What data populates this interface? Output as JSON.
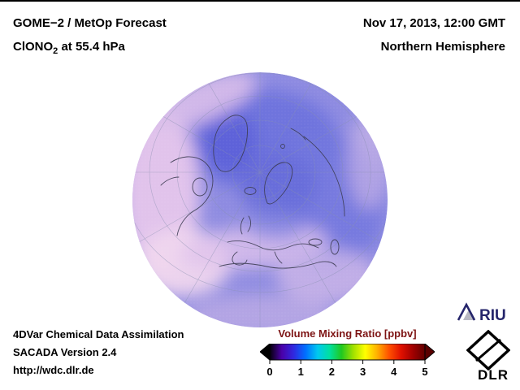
{
  "header": {
    "product": "GOME−2 / MetOp Forecast",
    "species_prefix": "ClONO",
    "species_sub": "2",
    "species_suffix": " at 55.4 hPa",
    "datetime": "Nov 17, 2013, 12:00 GMT",
    "region": "Northern Hemisphere"
  },
  "footer": {
    "assimilation": "4DVar Chemical Data Assimilation",
    "version": "SACADA Version 2.4",
    "url": "http://wdc.dlr.de"
  },
  "colorbar": {
    "title": "Volume Mixing Ratio [ppbv]",
    "title_color": "#7d1414",
    "range_min": 0,
    "range_max": 5,
    "unit": "ppbv",
    "ticks": [
      "0",
      "1",
      "2",
      "3",
      "4",
      "5"
    ],
    "colors": [
      "#05000a",
      "#4a00a8",
      "#3028e0",
      "#0070ff",
      "#00c8f0",
      "#00e0a0",
      "#20c820",
      "#a0e000",
      "#ffff00",
      "#ffb000",
      "#ff5000",
      "#e01000",
      "#a00000",
      "#600000"
    ]
  },
  "map": {
    "field_base_color": "#8f8ce1",
    "low_value_color": "#f0d6ee",
    "mid_value_color": "#8f8ce1",
    "high_value_color": "#5c62d8"
  },
  "logos": {
    "riu_label": "RIU",
    "dlr_label": "DLR"
  }
}
